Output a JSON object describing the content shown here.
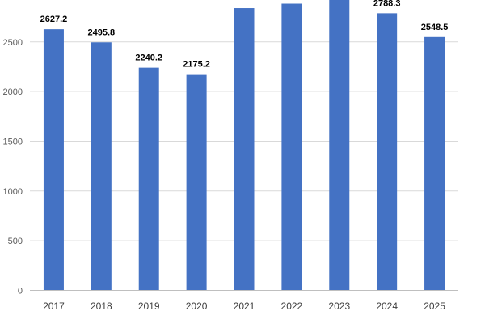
{
  "chart_data": {
    "type": "bar",
    "categories": [
      "2017",
      "2018",
      "2019",
      "2020",
      "2021",
      "2022",
      "2023",
      "2024",
      "2025"
    ],
    "values": [
      2627.2,
      2495.8,
      2240.2,
      2175.2,
      2840,
      2885,
      2960,
      2788.3,
      2548.5
    ],
    "data_labels": [
      "2627.2",
      "2495.8",
      "2240.2",
      "2175.2",
      "",
      "",
      "",
      "2788.3",
      "2548.5"
    ],
    "y_ticks": [
      0,
      500,
      1000,
      1500,
      2000,
      2500
    ],
    "ylim": [
      0,
      2960
    ],
    "title": "",
    "xlabel": "",
    "ylabel": "",
    "grid": true,
    "legend": "none",
    "colors": {
      "bar": "#4472c4",
      "grid": "#d9d9d9",
      "axis": "#bfbfbf"
    }
  }
}
